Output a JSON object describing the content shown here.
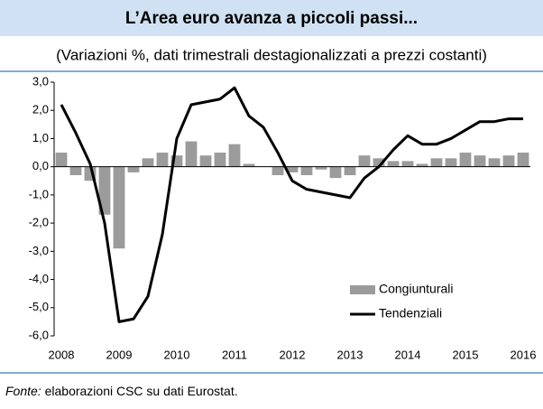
{
  "chart_data": {
    "type": "combo",
    "title": "L’Area euro avanza a piccoli passi...",
    "subtitle": "(Variazioni %, dati trimestrali destagionalizzati a prezzi costanti)",
    "categories": [
      "2008",
      null,
      null,
      null,
      "2009",
      null,
      null,
      null,
      "2010",
      null,
      null,
      null,
      "2011",
      null,
      null,
      null,
      "2012",
      null,
      null,
      null,
      "2013",
      null,
      null,
      null,
      "2014",
      null,
      null,
      null,
      "2015",
      null,
      null,
      null,
      "2016"
    ],
    "series": [
      {
        "name": "Congiunturali",
        "type": "bar",
        "color": "#9b9b9b",
        "values": [
          0.5,
          -0.3,
          -0.5,
          -1.7,
          -2.9,
          -0.2,
          0.3,
          0.5,
          0.4,
          0.9,
          0.4,
          0.5,
          0.8,
          0.1,
          0.0,
          -0.3,
          -0.2,
          -0.3,
          -0.1,
          -0.4,
          -0.3,
          0.4,
          0.3,
          0.2,
          0.2,
          0.1,
          0.3,
          0.3,
          0.5,
          0.4,
          0.3,
          0.4,
          0.5
        ]
      },
      {
        "name": "Tendenziali",
        "type": "line",
        "color": "#000000",
        "values": [
          2.2,
          1.2,
          0.1,
          -2.0,
          -5.5,
          -5.4,
          -4.6,
          -2.4,
          1.0,
          2.2,
          2.3,
          2.4,
          2.8,
          1.8,
          1.4,
          0.5,
          -0.5,
          -0.8,
          -0.9,
          -1.0,
          -1.1,
          -0.4,
          0.0,
          0.6,
          1.1,
          0.8,
          0.8,
          1.0,
          1.3,
          1.6,
          1.6,
          1.7,
          1.7
        ]
      }
    ],
    "ylim": [
      -6,
      3
    ],
    "yticks": [
      {
        "value": 3,
        "label": "3,0"
      },
      {
        "value": 2,
        "label": "2,0"
      },
      {
        "value": 1,
        "label": "1,0"
      },
      {
        "value": 0,
        "label": "0,0"
      },
      {
        "value": -1,
        "label": "-1,0"
      },
      {
        "value": -2,
        "label": "-2,0"
      },
      {
        "value": -3,
        "label": "-3,0"
      },
      {
        "value": -4,
        "label": "-4,0"
      },
      {
        "value": -5,
        "label": "-5,0"
      },
      {
        "value": -6,
        "label": "-6,0"
      }
    ],
    "legend": "bottom-right",
    "source_label": "Fonte:",
    "source": "elaborazioni CSC su dati Eurostat."
  }
}
